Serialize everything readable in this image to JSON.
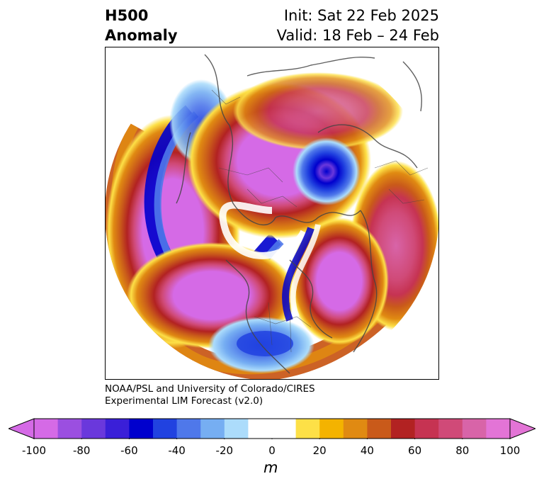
{
  "title": {
    "left_line1": "H500",
    "left_line2": "Anomaly",
    "right_line1": "Init: Sat 22 Feb 2025",
    "right_line2": "Valid: 18 Feb – 24 Feb"
  },
  "credit": {
    "line1": "NOAA/PSL and University of Colorado/CIRES",
    "line2": "Experimental LIM Forecast (v2.0)"
  },
  "colorbar": {
    "unit": "m",
    "tick_labels": [
      "-100",
      "-80",
      "-60",
      "-40",
      "-20",
      "0",
      "20",
      "40",
      "60",
      "80",
      "100"
    ],
    "colors": [
      "#d56ae6",
      "#9b4fe0",
      "#6a38dc",
      "#3a1fd8",
      "#0000cd",
      "#2142e0",
      "#4f78ea",
      "#76aef2",
      "#acdcfb",
      "#ffffff",
      "#ffffff",
      "#fde047",
      "#f4b300",
      "#e08a12",
      "#c95a1a",
      "#b22222",
      "#c63352",
      "#d04a78",
      "#d864a8",
      "#e374d6"
    ],
    "under_color": "#d56ae6",
    "over_color": "#e374d6",
    "range": [
      -100,
      100
    ],
    "interval": 10
  },
  "map": {
    "projection": "north-polar-stereographic",
    "anomaly_field": [
      {
        "region": "north-pacific",
        "sign": "positive",
        "peak_m": 100
      },
      {
        "region": "western-north-america",
        "sign": "negative",
        "peak_m": -60
      },
      {
        "region": "arctic-greenland",
        "sign": "positive",
        "peak_m": 100
      },
      {
        "region": "eastern-north-america-atlantic",
        "sign": "positive",
        "peak_m": 100
      },
      {
        "region": "southeastern-us-gulf",
        "sign": "negative",
        "peak_m": -60
      },
      {
        "region": "east-asia",
        "sign": "negative",
        "peak_m": -100
      },
      {
        "region": "northern-eurasia",
        "sign": "positive",
        "peak_m": 100
      },
      {
        "region": "europe",
        "sign": "positive",
        "peak_m": 80
      }
    ]
  }
}
